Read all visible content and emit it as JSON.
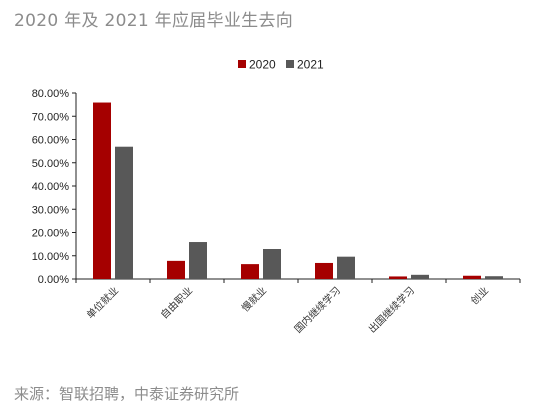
{
  "title": "2020 年及 2021 年应届毕业生去向",
  "source": "来源：智联招聘，中泰证券研究所",
  "chart_data": {
    "type": "bar",
    "categories": [
      "单位就业",
      "自由职业",
      "慢就业",
      "国内继续学习",
      "出国继续学习",
      "创业"
    ],
    "series": [
      {
        "name": "2020",
        "color": "#a50000",
        "values": [
          75.9,
          7.8,
          6.4,
          6.9,
          1.1,
          1.4
        ]
      },
      {
        "name": "2021",
        "color": "#585858",
        "values": [
          56.9,
          15.9,
          12.9,
          9.6,
          1.8,
          1.2
        ]
      }
    ],
    "yticks": [
      "0.00%",
      "10.00%",
      "20.00%",
      "30.00%",
      "40.00%",
      "50.00%",
      "60.00%",
      "70.00%",
      "80.00%"
    ],
    "ylim": [
      0,
      80
    ],
    "grid": false,
    "legend": "top"
  }
}
